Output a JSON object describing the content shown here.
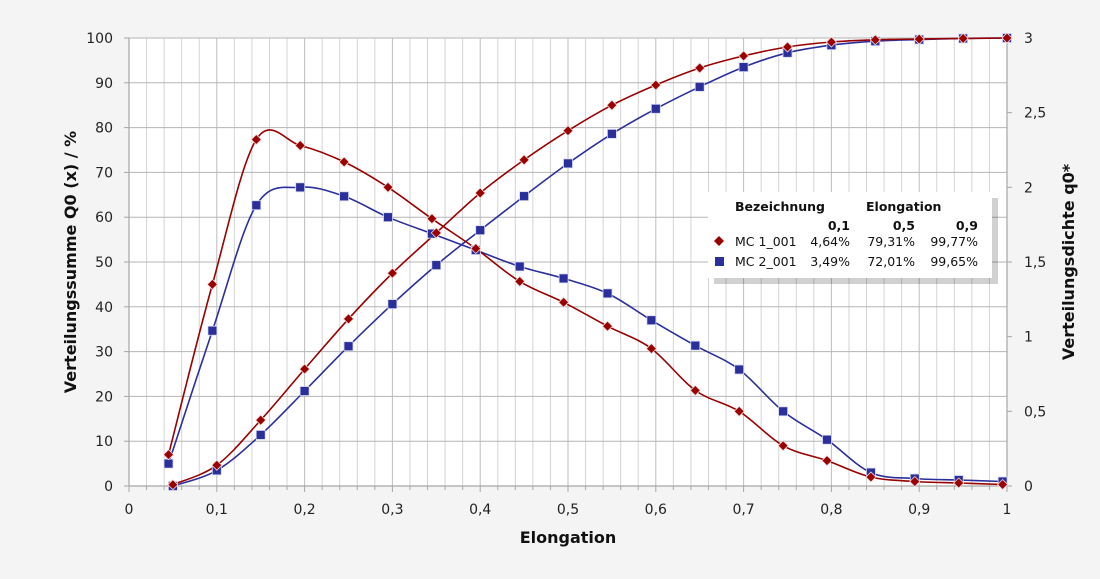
{
  "chart_data": {
    "type": "line",
    "xlabel": "Elongation",
    "ylabel": "Verteilungssumme Q0 (x) / %",
    "y2label": "Verteilungsdichte q0*",
    "xlim": [
      0,
      1
    ],
    "ylim": [
      0,
      100
    ],
    "y2lim": [
      0,
      3
    ],
    "grid": true,
    "x_ticks": [
      "0",
      "0,1",
      "0,2",
      "0,3",
      "0,4",
      "0,5",
      "0,6",
      "0,7",
      "0,8",
      "0,9",
      "1"
    ],
    "y_ticks": [
      "0",
      "10",
      "20",
      "30",
      "40",
      "50",
      "60",
      "70",
      "80",
      "90",
      "100"
    ],
    "y2_ticks": [
      "0",
      "0,5",
      "1",
      "1,5",
      "2",
      "2,5",
      "3"
    ],
    "colors": {
      "mc1": "#990000",
      "mc2": "#2b2f9c"
    },
    "series": [
      {
        "name": "MC 1_001 Q0",
        "axis": "left",
        "marker": "diamond",
        "color": "#990000",
        "x": [
          0.05,
          0.1,
          0.15,
          0.2,
          0.25,
          0.3,
          0.35,
          0.4,
          0.45,
          0.5,
          0.55,
          0.6,
          0.65,
          0.7,
          0.75,
          0.8,
          0.85,
          0.9,
          0.95,
          1.0
        ],
        "y": [
          0.3,
          4.64,
          14.7,
          26.1,
          37.3,
          47.5,
          56.5,
          65.4,
          72.8,
          79.31,
          85.0,
          89.5,
          93.3,
          96.0,
          98.0,
          99.1,
          99.6,
          99.77,
          99.9,
          100
        ]
      },
      {
        "name": "MC 2_001 Q0",
        "axis": "left",
        "marker": "square",
        "color": "#2b2f9c",
        "x": [
          0.05,
          0.1,
          0.15,
          0.2,
          0.25,
          0.3,
          0.35,
          0.4,
          0.45,
          0.5,
          0.55,
          0.6,
          0.65,
          0.7,
          0.75,
          0.8,
          0.85,
          0.9,
          0.95,
          1.0
        ],
        "y": [
          0,
          3.49,
          11.4,
          21.2,
          31.2,
          40.6,
          49.3,
          57.1,
          64.7,
          72.01,
          78.6,
          84.2,
          89.1,
          93.5,
          96.7,
          98.4,
          99.3,
          99.65,
          99.9,
          100
        ]
      },
      {
        "name": "MC 1_001 q0*",
        "axis": "right",
        "marker": "diamond",
        "color": "#990000",
        "x": [
          0.045,
          0.095,
          0.145,
          0.195,
          0.245,
          0.295,
          0.345,
          0.395,
          0.445,
          0.495,
          0.545,
          0.595,
          0.645,
          0.695,
          0.745,
          0.795,
          0.845,
          0.895,
          0.945,
          0.995
        ],
        "y": [
          0.21,
          1.35,
          2.32,
          2.28,
          2.17,
          2.0,
          1.79,
          1.59,
          1.37,
          1.23,
          1.07,
          0.92,
          0.64,
          0.5,
          0.27,
          0.17,
          0.06,
          0.03,
          0.02,
          0.01
        ]
      },
      {
        "name": "MC 2_001 q0*",
        "axis": "right",
        "marker": "square",
        "color": "#2b2f9c",
        "x": [
          0.045,
          0.095,
          0.145,
          0.195,
          0.245,
          0.295,
          0.345,
          0.395,
          0.445,
          0.495,
          0.545,
          0.595,
          0.645,
          0.695,
          0.745,
          0.795,
          0.845,
          0.895,
          0.945,
          0.995
        ],
        "y": [
          0.15,
          1.04,
          1.88,
          2.0,
          1.94,
          1.8,
          1.69,
          1.58,
          1.47,
          1.39,
          1.29,
          1.11,
          0.94,
          0.78,
          0.5,
          0.31,
          0.09,
          0.05,
          0.04,
          0.03
        ]
      }
    ],
    "legend": {
      "placement": "center-right",
      "header_name": "Bezeichnung",
      "header_group": "Elongation",
      "columns": [
        "0,1",
        "0,5",
        "0,9"
      ],
      "rows": [
        {
          "name": "MC 1_001",
          "marker": "diamond",
          "color": "#990000",
          "values": [
            "4,64%",
            "79,31%",
            "99,77%"
          ]
        },
        {
          "name": "MC 2_001",
          "marker": "square",
          "color": "#2b2f9c",
          "values": [
            "3,49%",
            "72,01%",
            "99,65%"
          ]
        }
      ]
    }
  }
}
